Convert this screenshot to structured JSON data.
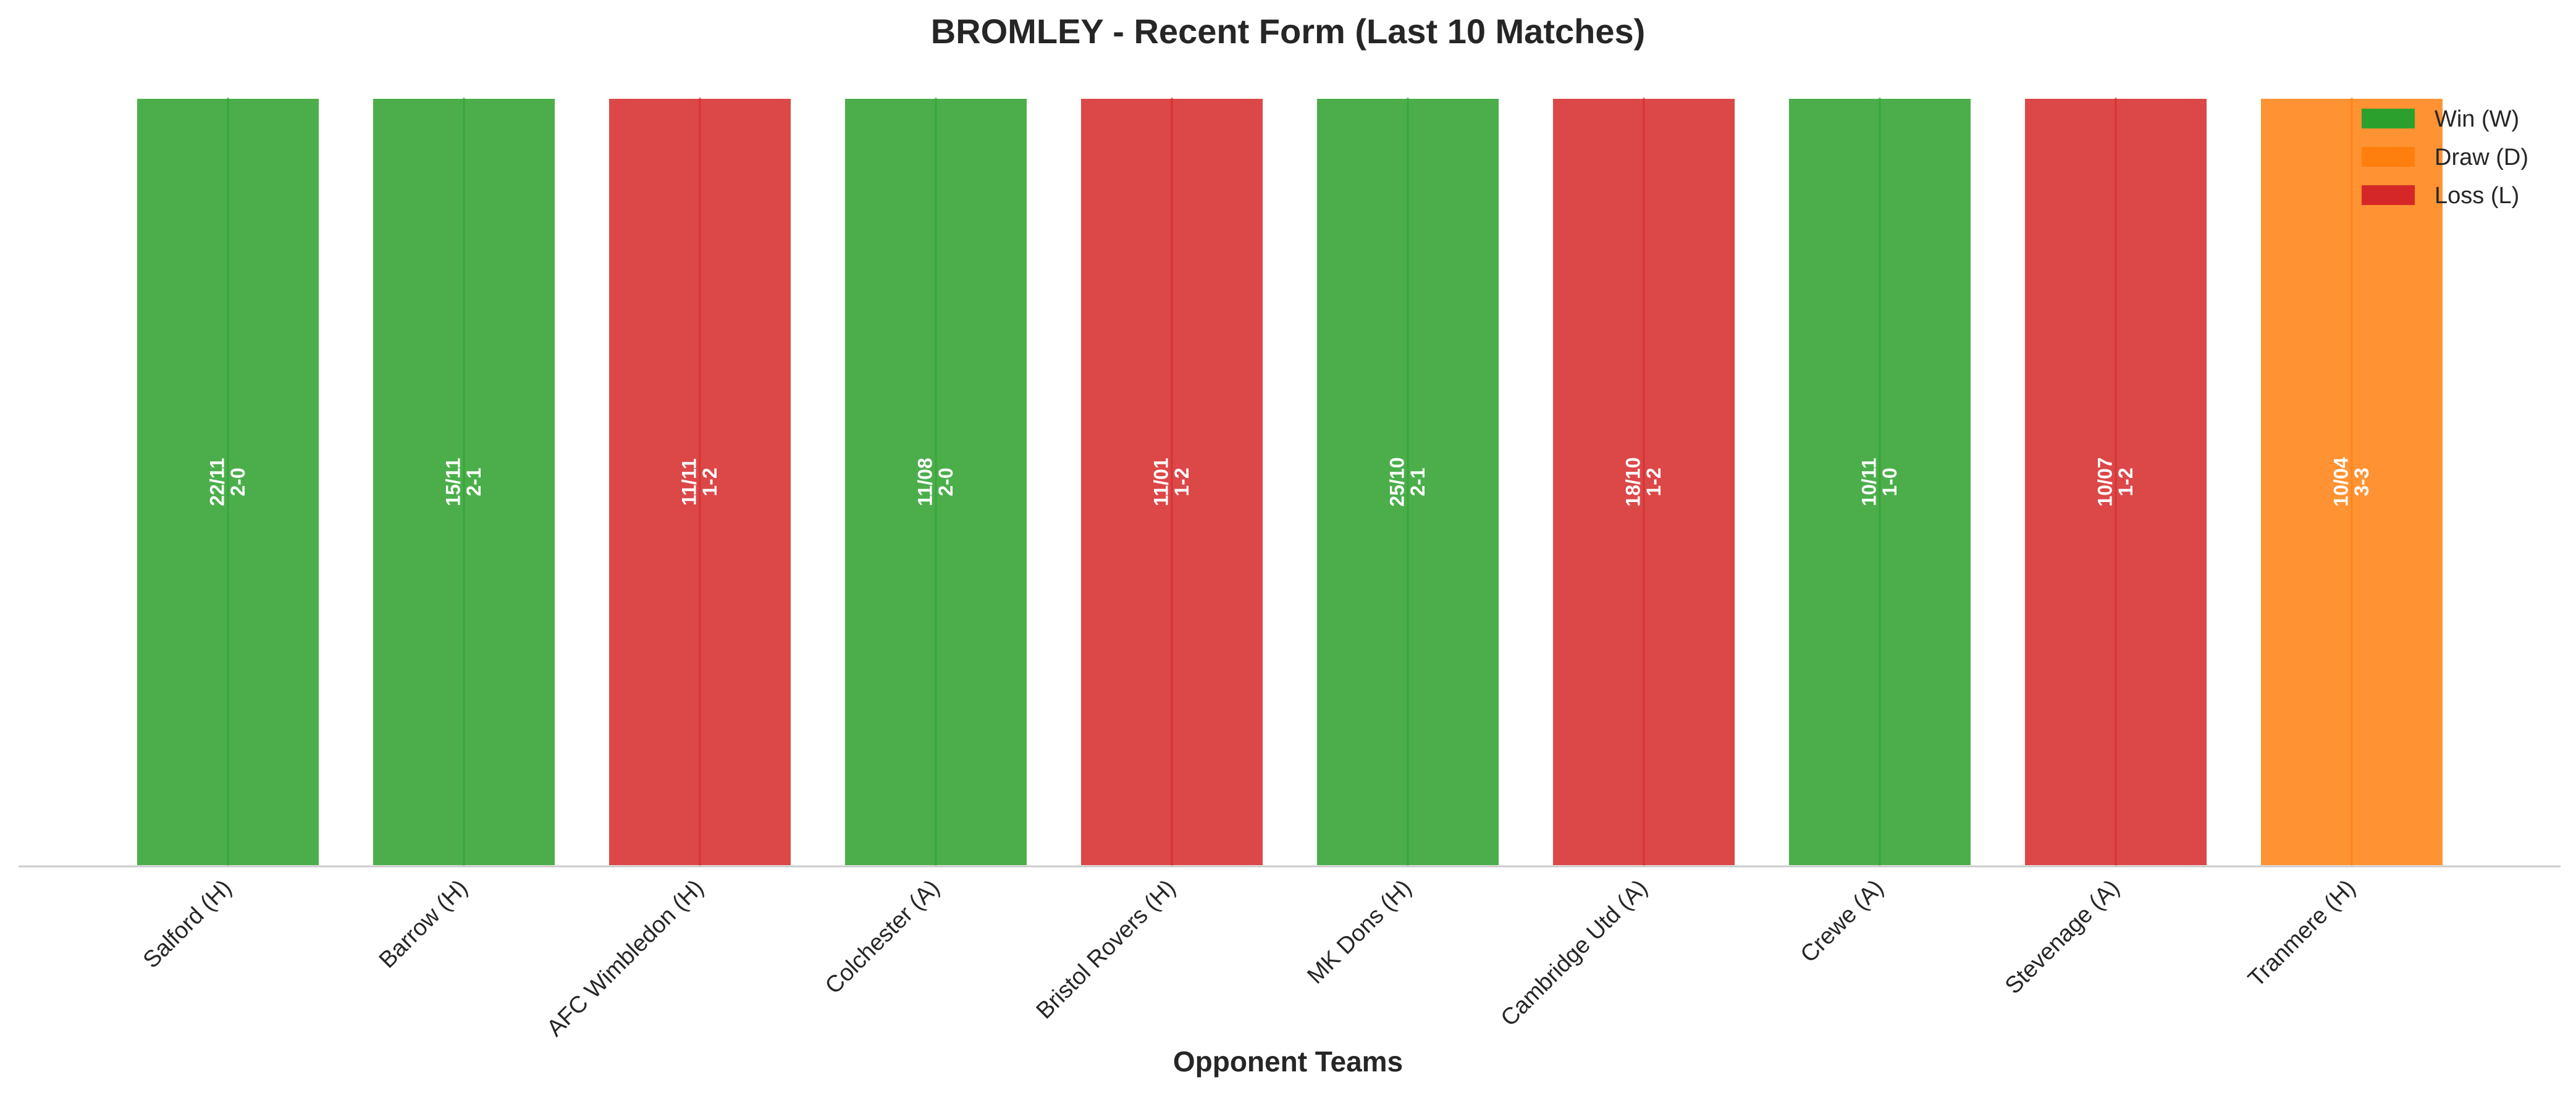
{
  "chart_data": {
    "type": "bar",
    "title": "BROMLEY - Recent Form (Last 10 Matches)",
    "xlabel": "Opponent Teams",
    "ylabel": "",
    "ylim": [
      0,
      1
    ],
    "grid": false,
    "legend_position": "top-right",
    "categories": [
      "Salford (H)",
      "Barrow (H)",
      "AFC Wimbledon (H)",
      "Colchester (A)",
      "Bristol Rovers (H)",
      "MK Dons (H)",
      "Cambridge Utd (A)",
      "Crewe (A)",
      "Stevenage (A)",
      "Tranmere (H)"
    ],
    "values": [
      1,
      1,
      1,
      1,
      1,
      1,
      1,
      1,
      1,
      1
    ],
    "results": [
      "W",
      "W",
      "L",
      "W",
      "L",
      "W",
      "L",
      "W",
      "L",
      "D"
    ],
    "dates": [
      "22/11",
      "15/11",
      "11/11",
      "11/08",
      "11/01",
      "25/10",
      "18/10",
      "10/11",
      "10/07",
      "10/04"
    ],
    "scores": [
      "2-0",
      "2-1",
      "1-2",
      "2-0",
      "1-2",
      "2-1",
      "1-2",
      "1-0",
      "1-2",
      "3-3"
    ],
    "legend": [
      {
        "key": "W",
        "label": "Win (W)",
        "color": "#2ca02c"
      },
      {
        "key": "D",
        "label": "Draw (D)",
        "color": "#ff7f0e"
      },
      {
        "key": "L",
        "label": "Loss (L)",
        "color": "#d62728"
      }
    ],
    "colors": {
      "W": "#2ca02c",
      "D": "#ff7f0e",
      "L": "#d62728",
      "axis": "#cccccc"
    }
  }
}
